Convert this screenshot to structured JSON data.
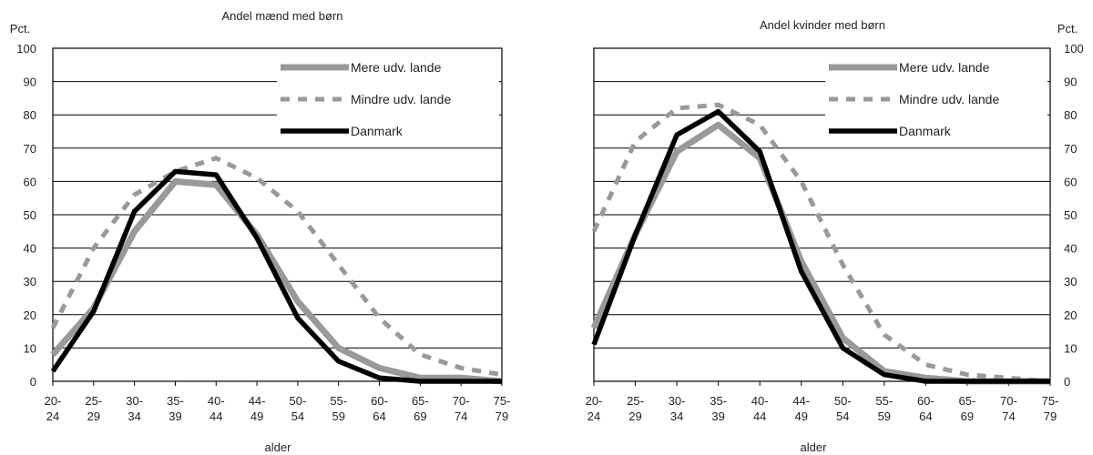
{
  "chart_data": [
    {
      "type": "line",
      "title": "Andel mænd med børn",
      "xlabel": "alder",
      "ylabel": "Pct.",
      "ylim": [
        0,
        100
      ],
      "yticks": [
        0,
        10,
        20,
        30,
        40,
        50,
        60,
        70,
        80,
        90,
        100
      ],
      "y_axis_side": "left",
      "grid": true,
      "legend_position": "top-right",
      "categories": [
        [
          "20-",
          "24"
        ],
        [
          "25-",
          "29"
        ],
        [
          "30-",
          "34"
        ],
        [
          "35-",
          "39"
        ],
        [
          "40-",
          "44"
        ],
        [
          "44-",
          "49"
        ],
        [
          "50-",
          "54"
        ],
        [
          "55-",
          "59"
        ],
        [
          "60-",
          "64"
        ],
        [
          "65-",
          "69"
        ],
        [
          "70-",
          "74"
        ],
        [
          "75-",
          "79"
        ]
      ],
      "series": [
        {
          "name": "Mere udv. lande",
          "style": "solid-gray",
          "color": "#999999",
          "values": [
            8,
            22,
            45,
            60,
            59,
            44,
            24,
            10,
            4,
            1,
            1,
            0
          ]
        },
        {
          "name": "Mindre udv. lande",
          "style": "dashed-gray",
          "color": "#999999",
          "values": [
            16,
            40,
            56,
            63,
            67,
            61,
            51,
            35,
            19,
            8,
            4,
            2
          ]
        },
        {
          "name": "Danmark",
          "style": "solid-black",
          "color": "#000000",
          "values": [
            3,
            21,
            51,
            63,
            62,
            43,
            19,
            6,
            1,
            0,
            0,
            0
          ]
        }
      ]
    },
    {
      "type": "line",
      "title": "Andel kvinder med børn",
      "xlabel": "alder",
      "ylabel": "Pct.",
      "ylim": [
        0,
        100
      ],
      "yticks": [
        0,
        10,
        20,
        30,
        40,
        50,
        60,
        70,
        80,
        90,
        100
      ],
      "y_axis_side": "right",
      "grid": true,
      "legend_position": "top-right",
      "categories": [
        [
          "20-",
          "24"
        ],
        [
          "25-",
          "29"
        ],
        [
          "30-",
          "34"
        ],
        [
          "35-",
          "39"
        ],
        [
          "40-",
          "44"
        ],
        [
          "44-",
          "49"
        ],
        [
          "50-",
          "54"
        ],
        [
          "55-",
          "59"
        ],
        [
          "60-",
          "64"
        ],
        [
          "65-",
          "69"
        ],
        [
          "70-",
          "74"
        ],
        [
          "75-",
          "79"
        ]
      ],
      "series": [
        {
          "name": "Mere udv. lande",
          "style": "solid-gray",
          "color": "#999999",
          "values": [
            16,
            44,
            69,
            77,
            67,
            36,
            13,
            3,
            1,
            0,
            0,
            0
          ]
        },
        {
          "name": "Mindre udv. lande",
          "style": "dashed-gray",
          "color": "#999999",
          "values": [
            45,
            72,
            82,
            83,
            77,
            60,
            35,
            14,
            5,
            2,
            1,
            0
          ]
        },
        {
          "name": "Danmark",
          "style": "solid-black",
          "color": "#000000",
          "values": [
            11,
            44,
            74,
            81,
            69,
            33,
            10,
            2,
            0,
            0,
            0,
            0
          ]
        }
      ]
    }
  ]
}
